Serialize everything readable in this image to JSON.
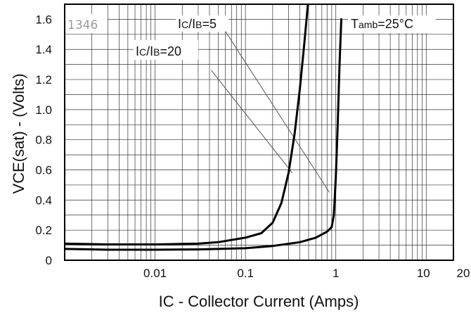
{
  "chart_data": {
    "type": "line",
    "title": "",
    "part_code": "1346",
    "xlabel": "IC - Collector Current (Amps)",
    "ylabel": "VCE(sat) - (Volts)",
    "x_scale": "log",
    "xlim": [
      0.001,
      20
    ],
    "ylim": [
      0,
      1.7
    ],
    "grid": true,
    "x_ticks": [
      {
        "value": 0.01,
        "label": "0.01"
      },
      {
        "value": 0.1,
        "label": "0.1"
      },
      {
        "value": 1,
        "label": "1"
      },
      {
        "value": 10,
        "label": "10"
      },
      {
        "value": 20,
        "label": "20"
      }
    ],
    "y_ticks": [
      {
        "value": 0,
        "label": "0"
      },
      {
        "value": 0.2,
        "label": "0.2"
      },
      {
        "value": 0.4,
        "label": "0.4"
      },
      {
        "value": 0.6,
        "label": "0.6"
      },
      {
        "value": 0.8,
        "label": "0.8"
      },
      {
        "value": 1.0,
        "label": "1.0"
      },
      {
        "value": 1.2,
        "label": "1.2"
      },
      {
        "value": 1.4,
        "label": "1.4"
      },
      {
        "value": 1.6,
        "label": "1.6"
      }
    ],
    "annotations": {
      "temperature": {
        "prefix": "T",
        "subscript": "amb",
        "suffix": "=25°C"
      }
    },
    "series": [
      {
        "name": "IC/IB=5",
        "label_parts": {
          "a": "I",
          "a_sub": "C",
          "b": "/I",
          "b_sub": "B",
          "c": "=5"
        },
        "x": [
          0.001,
          0.003,
          0.01,
          0.03,
          0.05,
          0.1,
          0.15,
          0.2,
          0.25,
          0.3,
          0.35,
          0.4,
          0.45,
          0.5,
          0.54
        ],
        "y": [
          0.11,
          0.105,
          0.105,
          0.11,
          0.12,
          0.15,
          0.18,
          0.25,
          0.38,
          0.58,
          0.84,
          1.14,
          1.45,
          1.75,
          1.84
        ]
      },
      {
        "name": "IC/IB=20",
        "label_parts": {
          "a": "I",
          "a_sub": "C",
          "b": "/I",
          "b_sub": "B",
          "c": "=20"
        },
        "x": [
          0.001,
          0.003,
          0.01,
          0.03,
          0.1,
          0.2,
          0.4,
          0.6,
          0.8,
          0.9,
          0.95,
          1.0,
          1.05,
          1.1,
          1.15
        ],
        "y": [
          0.075,
          0.07,
          0.07,
          0.072,
          0.08,
          0.095,
          0.12,
          0.15,
          0.19,
          0.22,
          0.3,
          0.55,
          0.9,
          1.3,
          1.6
        ]
      }
    ]
  }
}
